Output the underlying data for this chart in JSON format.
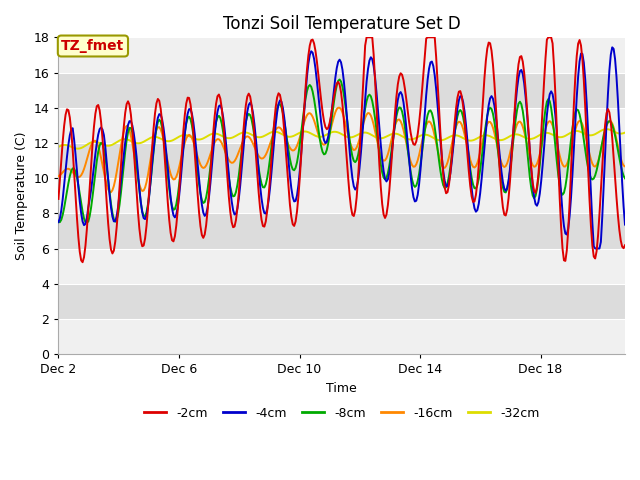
{
  "title": "Tonzi Soil Temperature Set D",
  "xlabel": "Time",
  "ylabel": "Soil Temperature (C)",
  "ylim": [
    0,
    18
  ],
  "yticks": [
    0,
    2,
    4,
    6,
    8,
    10,
    12,
    14,
    16,
    18
  ],
  "xtick_labels": [
    "Dec 2",
    "Dec 6",
    "Dec 10",
    "Dec 14",
    "Dec 18"
  ],
  "xtick_positions": [
    0,
    4,
    8,
    12,
    16
  ],
  "annotation_text": "TZ_fmet",
  "annotation_color": "#cc0000",
  "annotation_bg": "#ffffcc",
  "annotation_edge": "#999900",
  "fig_bg": "#ffffff",
  "plot_bg": "#ffffff",
  "band_light": "#f0f0f0",
  "band_dark": "#dcdcdc",
  "legend_entries": [
    "-2cm",
    "-4cm",
    "-8cm",
    "-16cm",
    "-32cm"
  ],
  "line_colors": [
    "#dd0000",
    "#0000cc",
    "#00aa00",
    "#ff8800",
    "#dddd00"
  ],
  "title_fontsize": 12,
  "label_fontsize": 9,
  "tick_fontsize": 9
}
